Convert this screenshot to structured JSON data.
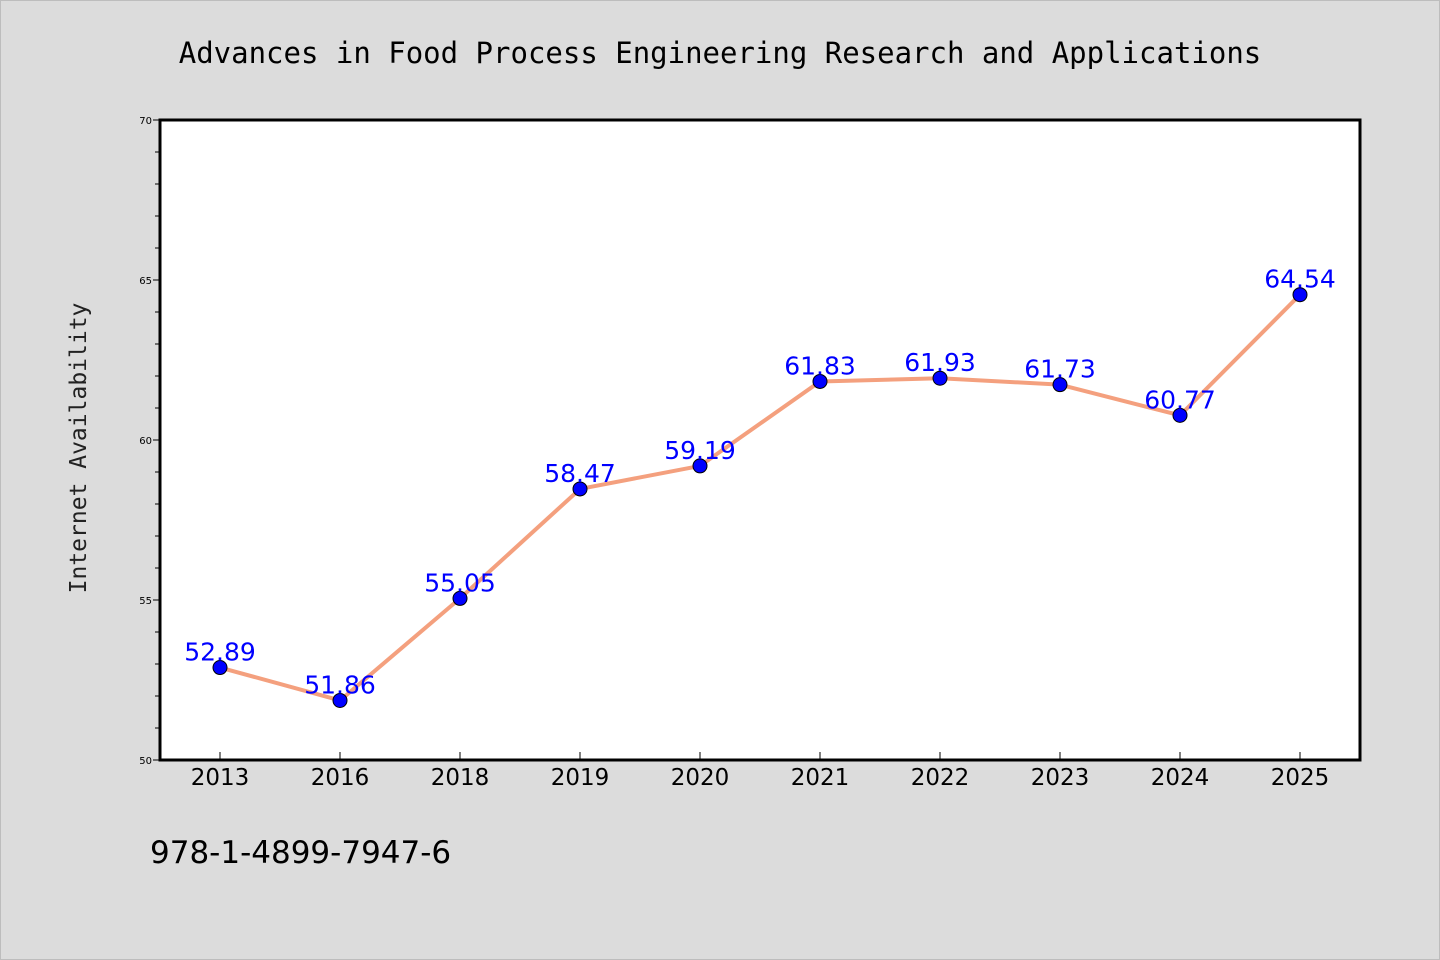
{
  "chart_data": {
    "type": "line",
    "title": "Advances in Food Process Engineering Research and Applications",
    "xlabel": "",
    "ylabel": "Internet Availability",
    "categories": [
      "2013",
      "2016",
      "2018",
      "2019",
      "2020",
      "2021",
      "2022",
      "2023",
      "2024",
      "2025"
    ],
    "series": [
      {
        "values": [
          52.89,
          51.86,
          55.05,
          58.47,
          59.19,
          61.83,
          61.93,
          61.73,
          60.77,
          64.54
        ],
        "data_labels": [
          "52.89",
          "51.86",
          "55.05",
          "58.47",
          "59.19",
          "61.83",
          "61.93",
          "61.73",
          "60.77",
          "64.54"
        ]
      }
    ],
    "ylim": [
      50,
      70
    ],
    "yticks": [
      "50",
      "55",
      "60",
      "65",
      "70"
    ],
    "grid": false,
    "legend": "none",
    "colors": {
      "line": "#f4a07e",
      "marker": "#0000ff",
      "data_label": "#0000ff",
      "page_background": "#dcdcdc",
      "plot_background": "#ffffff"
    }
  },
  "footer": {
    "code": "978-1-4899-7947-6"
  }
}
